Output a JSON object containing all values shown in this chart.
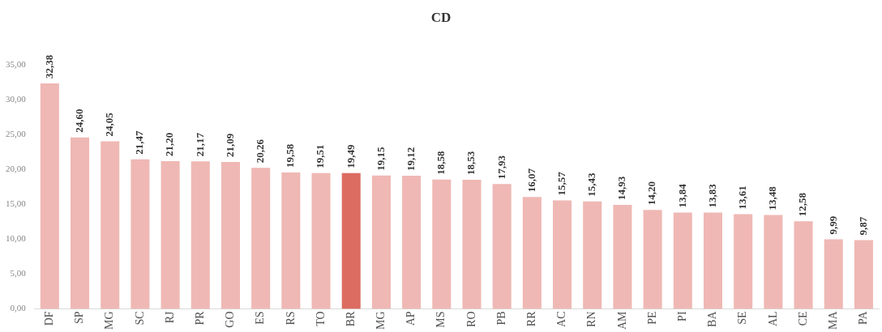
{
  "chart_data": {
    "type": "bar",
    "title": "CD",
    "categories": [
      "DF",
      "SP",
      "MG",
      "SC",
      "RJ",
      "PR",
      "GO",
      "ES",
      "RS",
      "TO",
      "BR",
      "MG",
      "AP",
      "MS",
      "RO",
      "PB",
      "RR",
      "AC",
      "RN",
      "AM",
      "PE",
      "PI",
      "BA",
      "SE",
      "AL",
      "CE",
      "MA",
      "PA"
    ],
    "values": [
      32.38,
      24.6,
      24.05,
      21.47,
      21.2,
      21.17,
      21.09,
      20.26,
      19.58,
      19.51,
      19.49,
      19.15,
      19.12,
      18.58,
      18.53,
      17.93,
      16.07,
      15.57,
      15.43,
      14.93,
      14.2,
      13.84,
      13.83,
      13.61,
      13.48,
      12.58,
      9.99,
      9.87
    ],
    "value_labels": [
      "32,38",
      "24,60",
      "24,05",
      "21,47",
      "21,20",
      "21,17",
      "21,09",
      "20,26",
      "19,58",
      "19,51",
      "19,49",
      "19,15",
      "19,12",
      "18,58",
      "18,53",
      "17,93",
      "16,07",
      "15,57",
      "15,43",
      "14,93",
      "14,20",
      "13,84",
      "13,83",
      "13,61",
      "13,48",
      "12,58",
      "9,99",
      "9,87"
    ],
    "colors": [
      "#efb8b4",
      "#efb8b4",
      "#efb8b4",
      "#efb8b4",
      "#efb8b4",
      "#efb8b4",
      "#efb8b4",
      "#efb8b4",
      "#efb8b4",
      "#efb8b4",
      "#dc6c61",
      "#efb8b4",
      "#efb8b4",
      "#efb8b4",
      "#efb8b4",
      "#efb8b4",
      "#efb8b4",
      "#efb8b4",
      "#efb8b4",
      "#efb8b4",
      "#efb8b4",
      "#efb8b4",
      "#efb8b4",
      "#efb8b4",
      "#efb8b4",
      "#efb8b4",
      "#efb8b4",
      "#efb8b4"
    ],
    "ylim": [
      0,
      35
    ],
    "yticks": [
      {
        "value": 0,
        "label": "0,00"
      },
      {
        "value": 5,
        "label": "5,00"
      },
      {
        "value": 10,
        "label": "10,00"
      },
      {
        "value": 15,
        "label": "15,00"
      },
      {
        "value": 20,
        "label": "20,00"
      },
      {
        "value": 25,
        "label": "25,00"
      },
      {
        "value": 30,
        "label": "30,00"
      },
      {
        "value": 35,
        "label": "35,00"
      }
    ],
    "grid": false,
    "legend": false
  }
}
